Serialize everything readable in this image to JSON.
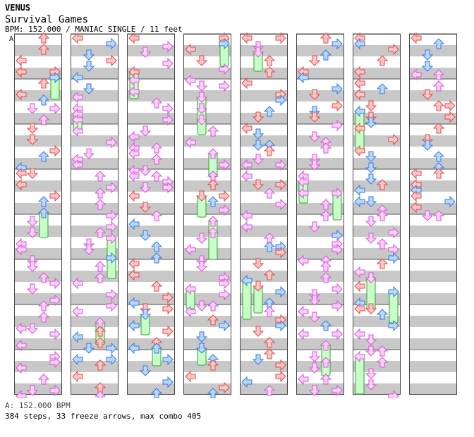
{
  "song": {
    "artist": "VENUS",
    "title": "Survival Games",
    "meta": "BPM: 152.000 / MANIAC SINGLE / 11 feet",
    "marker": "A"
  },
  "footer": {
    "bpm_line": "A: 152.000 BPM",
    "stats": "384 steps, 33 freeze arrows, max combo 405"
  },
  "colors": {
    "red_fill": "#ffc8c8",
    "red_stroke": "#e04848",
    "blue_fill": "#b8d8ff",
    "blue_stroke": "#3a78d8",
    "pink_fill": "#ffd0ff",
    "pink_stroke": "#d058d0",
    "freeze_fill": "#c8ffc8",
    "freeze_stroke": "#30a030",
    "stripe": "#c8c8c8"
  },
  "chart": {
    "columns": 8,
    "measures_per_column": 8,
    "last_column_measures": 4
  }
}
